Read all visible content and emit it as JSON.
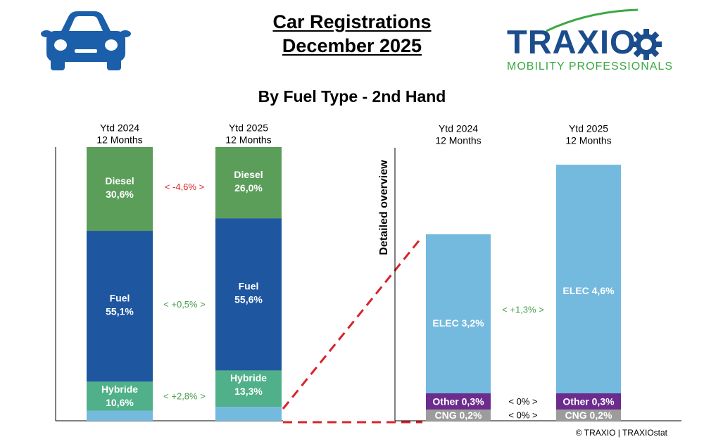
{
  "header": {
    "title_line1": "Car Registrations",
    "title_line2": "December 2025",
    "subtitle": "By Fuel Type - 2nd Hand",
    "brand_name": "TRAXIO",
    "brand_tagline": "MOBILITY PROFESSIONALS",
    "car_icon": "car-icon",
    "footer": "© TRAXIO | TRAXIOstat"
  },
  "colors": {
    "diesel": "#5a9e5a",
    "fuel": "#1f56a0",
    "hybride": "#4fb089",
    "light": "#74b9de",
    "elec": "#74b9de",
    "other": "#6b2c8e",
    "cng": "#9c9c9c",
    "positive": "#4a9e4a",
    "negative": "#d9232a",
    "neutral": "#000000",
    "dashed": "#d9232a",
    "brand_blue": "#1b4c8c",
    "brand_green": "#3aa843"
  },
  "chart_data": [
    {
      "type": "bar",
      "stacked": true,
      "normalized": true,
      "categories": [
        "Ytd 2024\n12 Months",
        "Ytd 2025\n12 Months"
      ],
      "series": [
        {
          "name": "Hybride",
          "values": [
            10.6,
            13.3
          ],
          "labels": [
            "Hybride\n10,6%",
            "Hybride\n13,3%"
          ],
          "color": "#4fb089"
        },
        {
          "name": "Fuel",
          "values": [
            55.1,
            55.6
          ],
          "labels": [
            "Fuel\n55,1%",
            "Fuel\n55,6%"
          ],
          "color": "#1f56a0"
        },
        {
          "name": "Diesel",
          "values": [
            30.6,
            26.0
          ],
          "labels": [
            "Diesel\n30,6%",
            "Diesel\n26,0%"
          ],
          "color": "#5a9e5a"
        }
      ],
      "remainder_color": "#74b9de",
      "changes": [
        {
          "series": "Diesel",
          "label": "<  -4,6%  >",
          "sign": "negative"
        },
        {
          "series": "Fuel",
          "label": "<  +0,5%  >",
          "sign": "positive"
        },
        {
          "series": "Hybride",
          "label": "<  +2,8%  >",
          "sign": "positive"
        }
      ]
    },
    {
      "type": "bar",
      "stacked": true,
      "title": "Detailed overview",
      "categories": [
        "Ytd 2024\n12 Months",
        "Ytd 2025\n12 Months"
      ],
      "series": [
        {
          "name": "CNG",
          "values": [
            0.2,
            0.2
          ],
          "labels": [
            "CNG 0,2%",
            "CNG 0,2%"
          ],
          "color": "#9c9c9c"
        },
        {
          "name": "Other",
          "values": [
            0.3,
            0.3
          ],
          "labels": [
            "Other 0,3%",
            "Other 0,3%"
          ],
          "color": "#6b2c8e"
        },
        {
          "name": "ELEC",
          "values": [
            3.2,
            4.6
          ],
          "labels": [
            "ELEC 3,2%",
            "ELEC 4,6%"
          ],
          "color": "#74b9de"
        }
      ],
      "changes": [
        {
          "series": "ELEC",
          "label": "<  +1,3%  >",
          "sign": "positive"
        },
        {
          "series": "Other",
          "label": "<  0%  >",
          "sign": "neutral"
        },
        {
          "series": "CNG",
          "label": "<  0%  >",
          "sign": "neutral"
        }
      ]
    }
  ]
}
